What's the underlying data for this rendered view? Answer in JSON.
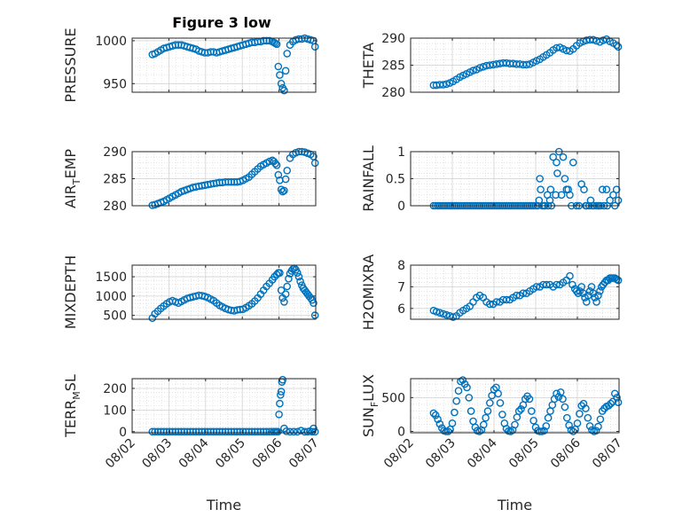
{
  "figure_title": "Figure 3 low",
  "colors": {
    "marker": "#0072bd",
    "axis": "#262626",
    "grid": "#d2d2d2",
    "background": "#ffffff"
  },
  "x_ticks": [
    "08/02",
    "08/03",
    "08/04",
    "08/05",
    "08/06",
    "08/07"
  ],
  "x_label": "Time",
  "chart_data": [
    {
      "type": "scatter",
      "name": "pressure",
      "title": "Figure 3 low",
      "ylabel": "PRESSURE",
      "xlabel": "",
      "xlim": [
        0,
        5
      ],
      "ylim": [
        940,
        1003
      ],
      "yticks": [
        950,
        1000
      ],
      "grid": true,
      "x": [
        0.55,
        0.62,
        0.7,
        0.78,
        0.86,
        0.94,
        1.02,
        1.1,
        1.18,
        1.26,
        1.34,
        1.42,
        1.5,
        1.58,
        1.66,
        1.74,
        1.82,
        1.9,
        1.98,
        2.06,
        2.14,
        2.22,
        2.3,
        2.38,
        2.46,
        2.54,
        2.62,
        2.7,
        2.78,
        2.86,
        2.94,
        3.02,
        3.1,
        3.18,
        3.26,
        3.34,
        3.42,
        3.5,
        3.58,
        3.66,
        3.74,
        3.82,
        3.86,
        3.9,
        3.94,
        3.98,
        4.02,
        4.06,
        4.1,
        4.14,
        4.18,
        4.22,
        4.3,
        4.38,
        4.46,
        4.54,
        4.62,
        4.7,
        4.78,
        4.86,
        4.94,
        4.98
      ],
      "y": [
        984,
        985,
        987,
        989,
        991,
        992,
        993,
        994,
        995,
        995,
        995,
        994,
        993,
        992,
        991,
        990,
        988,
        987,
        986,
        986,
        987,
        987,
        986,
        987,
        988,
        989,
        990,
        991,
        992,
        993,
        994,
        995,
        996,
        997,
        998,
        998,
        999,
        999,
        1000,
        1000,
        1000,
        999,
        998,
        997,
        996,
        970,
        960,
        950,
        945,
        942,
        965,
        985,
        995,
        999,
        1001,
        1002,
        1002,
        1003,
        1002,
        1001,
        1000,
        993
      ]
    },
    {
      "type": "scatter",
      "name": "theta",
      "ylabel": "THETA",
      "xlabel": "",
      "xlim": [
        0,
        5
      ],
      "ylim": [
        280,
        290
      ],
      "yticks": [
        280,
        285,
        290
      ],
      "grid": true,
      "x": [
        0.55,
        0.62,
        0.7,
        0.78,
        0.86,
        0.94,
        1.02,
        1.1,
        1.18,
        1.26,
        1.34,
        1.42,
        1.5,
        1.58,
        1.66,
        1.74,
        1.82,
        1.9,
        1.98,
        2.06,
        2.14,
        2.22,
        2.3,
        2.38,
        2.46,
        2.54,
        2.62,
        2.7,
        2.78,
        2.86,
        2.94,
        3.02,
        3.1,
        3.18,
        3.26,
        3.34,
        3.42,
        3.5,
        3.58,
        3.66,
        3.74,
        3.82,
        3.9,
        3.98,
        4.06,
        4.14,
        4.22,
        4.3,
        4.38,
        4.46,
        4.54,
        4.62,
        4.7,
        4.78,
        4.86,
        4.94,
        4.98
      ],
      "y": [
        281.3,
        281.3,
        281.4,
        281.4,
        281.5,
        281.7,
        282,
        282.4,
        282.8,
        283.1,
        283.4,
        283.7,
        284,
        284.2,
        284.5,
        284.7,
        284.9,
        285,
        285.1,
        285.2,
        285.3,
        285.4,
        285.4,
        285.3,
        285.3,
        285.2,
        285.2,
        285.1,
        285.1,
        285.2,
        285.5,
        285.8,
        286.1,
        286.5,
        286.9,
        287.3,
        287.8,
        288.2,
        288.3,
        288,
        287.7,
        287.6,
        288,
        288.6,
        289.1,
        289.4,
        289.6,
        289.7,
        289.7,
        289.5,
        289.3,
        289.6,
        289.8,
        289.4,
        289.1,
        288.7,
        288.4
      ]
    },
    {
      "type": "scatter",
      "name": "air_temp",
      "ylabel": "AIR_TEMP",
      "xlabel": "",
      "xlim": [
        0,
        5
      ],
      "ylim": [
        280,
        290
      ],
      "yticks": [
        280,
        285,
        290
      ],
      "grid": true,
      "x": [
        0.55,
        0.62,
        0.7,
        0.78,
        0.86,
        0.94,
        1.02,
        1.1,
        1.18,
        1.26,
        1.34,
        1.42,
        1.5,
        1.58,
        1.66,
        1.74,
        1.82,
        1.9,
        1.98,
        2.06,
        2.14,
        2.22,
        2.3,
        2.38,
        2.46,
        2.54,
        2.62,
        2.7,
        2.78,
        2.86,
        2.94,
        3.02,
        3.1,
        3.18,
        3.26,
        3.34,
        3.42,
        3.5,
        3.58,
        3.66,
        3.74,
        3.82,
        3.86,
        3.9,
        3.94,
        3.98,
        4.02,
        4.06,
        4.1,
        4.14,
        4.18,
        4.22,
        4.3,
        4.38,
        4.46,
        4.54,
        4.62,
        4.7,
        4.78,
        4.86,
        4.94,
        4.98
      ],
      "y": [
        280.1,
        280.2,
        280.4,
        280.6,
        280.8,
        281.1,
        281.4,
        281.7,
        282,
        282.3,
        282.6,
        282.8,
        283,
        283.2,
        283.4,
        283.5,
        283.6,
        283.7,
        283.8,
        283.9,
        284,
        284.1,
        284.2,
        284.3,
        284.3,
        284.4,
        284.4,
        284.4,
        284.4,
        284.4,
        284.5,
        284.7,
        285,
        285.3,
        285.8,
        286.3,
        286.8,
        287.3,
        287.6,
        287.9,
        288.2,
        288.4,
        288.2,
        287.8,
        287.5,
        285.7,
        284.7,
        283,
        282.6,
        282.8,
        284.9,
        286.5,
        288.8,
        289.5,
        289.8,
        290,
        290,
        289.9,
        289.7,
        289.5,
        289.1,
        287.9
      ]
    },
    {
      "type": "scatter",
      "name": "rainfall",
      "ylabel": "RAINFALL",
      "xlabel": "",
      "xlim": [
        0,
        5
      ],
      "ylim": [
        0,
        1
      ],
      "yticks": [
        0,
        0.5,
        1
      ],
      "grid": true,
      "x": [
        0.55,
        0.6,
        0.65,
        0.7,
        0.75,
        0.8,
        0.85,
        0.9,
        0.95,
        1,
        1.05,
        1.1,
        1.15,
        1.2,
        1.25,
        1.3,
        1.35,
        1.4,
        1.45,
        1.5,
        1.55,
        1.6,
        1.65,
        1.7,
        1.75,
        1.8,
        1.85,
        1.9,
        1.95,
        2,
        2.05,
        2.1,
        2.15,
        2.2,
        2.25,
        2.3,
        2.35,
        2.4,
        2.45,
        2.5,
        2.55,
        2.6,
        2.65,
        2.7,
        2.75,
        2.8,
        2.85,
        2.9,
        2.95,
        3,
        3.05,
        3.08,
        3.1,
        3.12,
        3.16,
        3.2,
        3.22,
        3.28,
        3.3,
        3.34,
        3.36,
        3.38,
        3.42,
        3.48,
        3.5,
        3.52,
        3.56,
        3.62,
        3.66,
        3.7,
        3.74,
        3.78,
        3.82,
        3.86,
        3.9,
        3.98,
        4.04,
        4.1,
        4.16,
        4.2,
        4.22,
        4.28,
        4.32,
        4.36,
        4.4,
        4.46,
        4.5,
        4.52,
        4.56,
        4.6,
        4.64,
        4.7,
        4.72,
        4.78,
        4.86,
        4.9,
        4.94,
        4.98
      ],
      "y": [
        0,
        0,
        0,
        0,
        0,
        0,
        0,
        0,
        0,
        0,
        0,
        0,
        0,
        0,
        0,
        0,
        0,
        0,
        0,
        0,
        0,
        0,
        0,
        0,
        0,
        0,
        0,
        0,
        0,
        0,
        0,
        0,
        0,
        0,
        0,
        0,
        0,
        0,
        0,
        0,
        0,
        0,
        0,
        0,
        0,
        0,
        0,
        0,
        0,
        0,
        0,
        0.1,
        0.5,
        0.3,
        0,
        0,
        0,
        0.2,
        0,
        0.1,
        0.3,
        0,
        0.9,
        0.2,
        0.8,
        0.6,
        1,
        0.2,
        0.9,
        0.5,
        0.3,
        0.3,
        0.2,
        0,
        0.8,
        0,
        0,
        0.4,
        0.3,
        0,
        0,
        0,
        0.1,
        0,
        0,
        0,
        0,
        0,
        0,
        0.3,
        0,
        0.3,
        0,
        0.1,
        0.2,
        0,
        0.3,
        0.1
      ]
    },
    {
      "type": "scatter",
      "name": "mixdepth",
      "ylabel": "MIXDEPTH",
      "xlabel": "",
      "xlim": [
        0,
        5
      ],
      "ylim": [
        400,
        1800
      ],
      "yticks": [
        500,
        1000,
        1500
      ],
      "grid": true,
      "x": [
        0.55,
        0.62,
        0.7,
        0.78,
        0.86,
        0.94,
        1.02,
        1.1,
        1.18,
        1.26,
        1.34,
        1.42,
        1.5,
        1.58,
        1.66,
        1.74,
        1.82,
        1.9,
        1.98,
        2.06,
        2.14,
        2.22,
        2.3,
        2.38,
        2.46,
        2.54,
        2.62,
        2.7,
        2.78,
        2.86,
        2.94,
        3.02,
        3.1,
        3.18,
        3.26,
        3.34,
        3.42,
        3.5,
        3.58,
        3.66,
        3.74,
        3.82,
        3.88,
        3.94,
        3.98,
        4.02,
        4.06,
        4.1,
        4.14,
        4.18,
        4.22,
        4.26,
        4.3,
        4.34,
        4.38,
        4.42,
        4.46,
        4.5,
        4.54,
        4.58,
        4.62,
        4.66,
        4.7,
        4.74,
        4.78,
        4.82,
        4.86,
        4.9,
        4.94,
        4.98
      ],
      "y": [
        430,
        540,
        610,
        680,
        740,
        800,
        850,
        880,
        850,
        820,
        860,
        900,
        940,
        960,
        980,
        1000,
        1020,
        1010,
        990,
        960,
        920,
        880,
        820,
        760,
        720,
        680,
        650,
        630,
        620,
        640,
        650,
        660,
        700,
        750,
        800,
        870,
        950,
        1050,
        1150,
        1250,
        1330,
        1420,
        1500,
        1560,
        1600,
        1600,
        1150,
        950,
        850,
        1050,
        1250,
        1450,
        1580,
        1650,
        1700,
        1720,
        1680,
        1600,
        1500,
        1380,
        1280,
        1200,
        1150,
        1100,
        1050,
        1000,
        950,
        900,
        820,
        500
      ]
    },
    {
      "type": "scatter",
      "name": "h2omixra",
      "ylabel": "H2OMIXRA",
      "xlabel": "",
      "xlim": [
        0,
        5
      ],
      "ylim": [
        5.5,
        8
      ],
      "yticks": [
        6,
        7,
        8
      ],
      "grid": true,
      "x": [
        0.55,
        0.62,
        0.7,
        0.78,
        0.86,
        0.94,
        1.02,
        1.1,
        1.18,
        1.26,
        1.34,
        1.42,
        1.5,
        1.58,
        1.66,
        1.74,
        1.82,
        1.9,
        1.98,
        2.06,
        2.14,
        2.22,
        2.3,
        2.38,
        2.46,
        2.54,
        2.62,
        2.7,
        2.78,
        2.86,
        2.94,
        3.02,
        3.1,
        3.18,
        3.26,
        3.34,
        3.42,
        3.5,
        3.58,
        3.66,
        3.74,
        3.82,
        3.88,
        3.94,
        3.98,
        4.02,
        4.06,
        4.1,
        4.14,
        4.18,
        4.22,
        4.26,
        4.3,
        4.34,
        4.38,
        4.42,
        4.46,
        4.5,
        4.54,
        4.58,
        4.62,
        4.66,
        4.7,
        4.74,
        4.78,
        4.82,
        4.86,
        4.9,
        4.94,
        4.98
      ],
      "y": [
        5.9,
        5.85,
        5.8,
        5.75,
        5.7,
        5.65,
        5.6,
        5.65,
        5.8,
        5.9,
        6.0,
        6.1,
        6.3,
        6.5,
        6.6,
        6.5,
        6.3,
        6.2,
        6.2,
        6.3,
        6.3,
        6.4,
        6.4,
        6.4,
        6.5,
        6.6,
        6.6,
        6.7,
        6.7,
        6.8,
        6.9,
        7.0,
        7.0,
        7.1,
        7.1,
        7.1,
        7.0,
        7.1,
        7.1,
        7.2,
        7.3,
        7.5,
        7.1,
        6.9,
        6.8,
        6.7,
        6.8,
        7.0,
        6.7,
        6.5,
        6.3,
        6.6,
        6.8,
        7.0,
        6.7,
        6.5,
        6.3,
        6.6,
        6.8,
        7.0,
        7.1,
        7.2,
        7.3,
        7.3,
        7.4,
        7.4,
        7.4,
        7.4,
        7.35,
        7.3
      ]
    },
    {
      "type": "scatter",
      "name": "terr_msl",
      "ylabel": "TERR_MSL",
      "xlabel": "Time",
      "xlim": [
        0,
        5
      ],
      "ylim": [
        -5,
        245
      ],
      "yticks": [
        0,
        100,
        200
      ],
      "grid": true,
      "x": [
        0.55,
        0.62,
        0.7,
        0.78,
        0.86,
        0.94,
        1.02,
        1.1,
        1.18,
        1.26,
        1.34,
        1.42,
        1.5,
        1.58,
        1.66,
        1.74,
        1.82,
        1.9,
        1.98,
        2.06,
        2.14,
        2.22,
        2.3,
        2.38,
        2.46,
        2.54,
        2.62,
        2.7,
        2.78,
        2.86,
        2.94,
        3.02,
        3.1,
        3.18,
        3.26,
        3.34,
        3.42,
        3.5,
        3.58,
        3.66,
        3.74,
        3.8,
        3.86,
        3.9,
        3.94,
        3.97,
        4.0,
        4.02,
        4.04,
        4.06,
        4.08,
        4.1,
        4.14,
        4.2,
        4.3,
        4.4,
        4.5,
        4.6,
        4.7,
        4.78,
        4.84,
        4.9,
        4.94,
        4.98
      ],
      "y": [
        0,
        0,
        0,
        0,
        0,
        0,
        0,
        0,
        0,
        0,
        0,
        0,
        0,
        0,
        0,
        0,
        0,
        0,
        0,
        0,
        0,
        0,
        0,
        0,
        0,
        0,
        0,
        0,
        0,
        0,
        0,
        0,
        0,
        0,
        0,
        0,
        0,
        0,
        0,
        0,
        0,
        0,
        0,
        0,
        0,
        0,
        80,
        130,
        170,
        185,
        230,
        240,
        15,
        2,
        0,
        0,
        0,
        5,
        0,
        0,
        2,
        0,
        15,
        0
      ]
    },
    {
      "type": "scatter",
      "name": "sun_flux",
      "ylabel": "SUN_FLUX",
      "xlabel": "Time",
      "xlim": [
        0,
        5
      ],
      "ylim": [
        -20,
        780
      ],
      "yticks": [
        0,
        500
      ],
      "grid": true,
      "x": [
        0.55,
        0.6,
        0.65,
        0.7,
        0.75,
        0.8,
        0.85,
        0.9,
        0.95,
        1,
        1.05,
        1.1,
        1.15,
        1.2,
        1.25,
        1.3,
        1.35,
        1.4,
        1.45,
        1.5,
        1.55,
        1.6,
        1.65,
        1.7,
        1.75,
        1.8,
        1.85,
        1.9,
        1.95,
        2,
        2.05,
        2.1,
        2.15,
        2.2,
        2.25,
        2.3,
        2.35,
        2.4,
        2.45,
        2.5,
        2.55,
        2.6,
        2.65,
        2.7,
        2.75,
        2.8,
        2.85,
        2.9,
        2.95,
        3,
        3.05,
        3.1,
        3.15,
        3.2,
        3.25,
        3.3,
        3.35,
        3.4,
        3.45,
        3.5,
        3.55,
        3.6,
        3.65,
        3.7,
        3.75,
        3.8,
        3.85,
        3.9,
        3.95,
        4,
        4.05,
        4.1,
        4.15,
        4.2,
        4.25,
        4.3,
        4.35,
        4.4,
        4.45,
        4.5,
        4.55,
        4.6,
        4.65,
        4.7,
        4.75,
        4.8,
        4.85,
        4.9,
        4.95,
        4.98
      ],
      "y": [
        270,
        240,
        180,
        110,
        50,
        10,
        0,
        0,
        30,
        120,
        280,
        450,
        600,
        740,
        760,
        700,
        650,
        500,
        300,
        150,
        60,
        10,
        0,
        20,
        100,
        200,
        300,
        420,
        530,
        620,
        650,
        560,
        420,
        250,
        120,
        40,
        5,
        0,
        20,
        100,
        210,
        300,
        330,
        390,
        480,
        520,
        480,
        300,
        160,
        60,
        10,
        0,
        0,
        10,
        80,
        200,
        300,
        390,
        480,
        560,
        510,
        580,
        480,
        360,
        200,
        90,
        20,
        0,
        30,
        120,
        260,
        380,
        410,
        340,
        200,
        80,
        20,
        0,
        10,
        70,
        180,
        300,
        340,
        370,
        380,
        410,
        440,
        560,
        500,
        430
      ]
    }
  ]
}
